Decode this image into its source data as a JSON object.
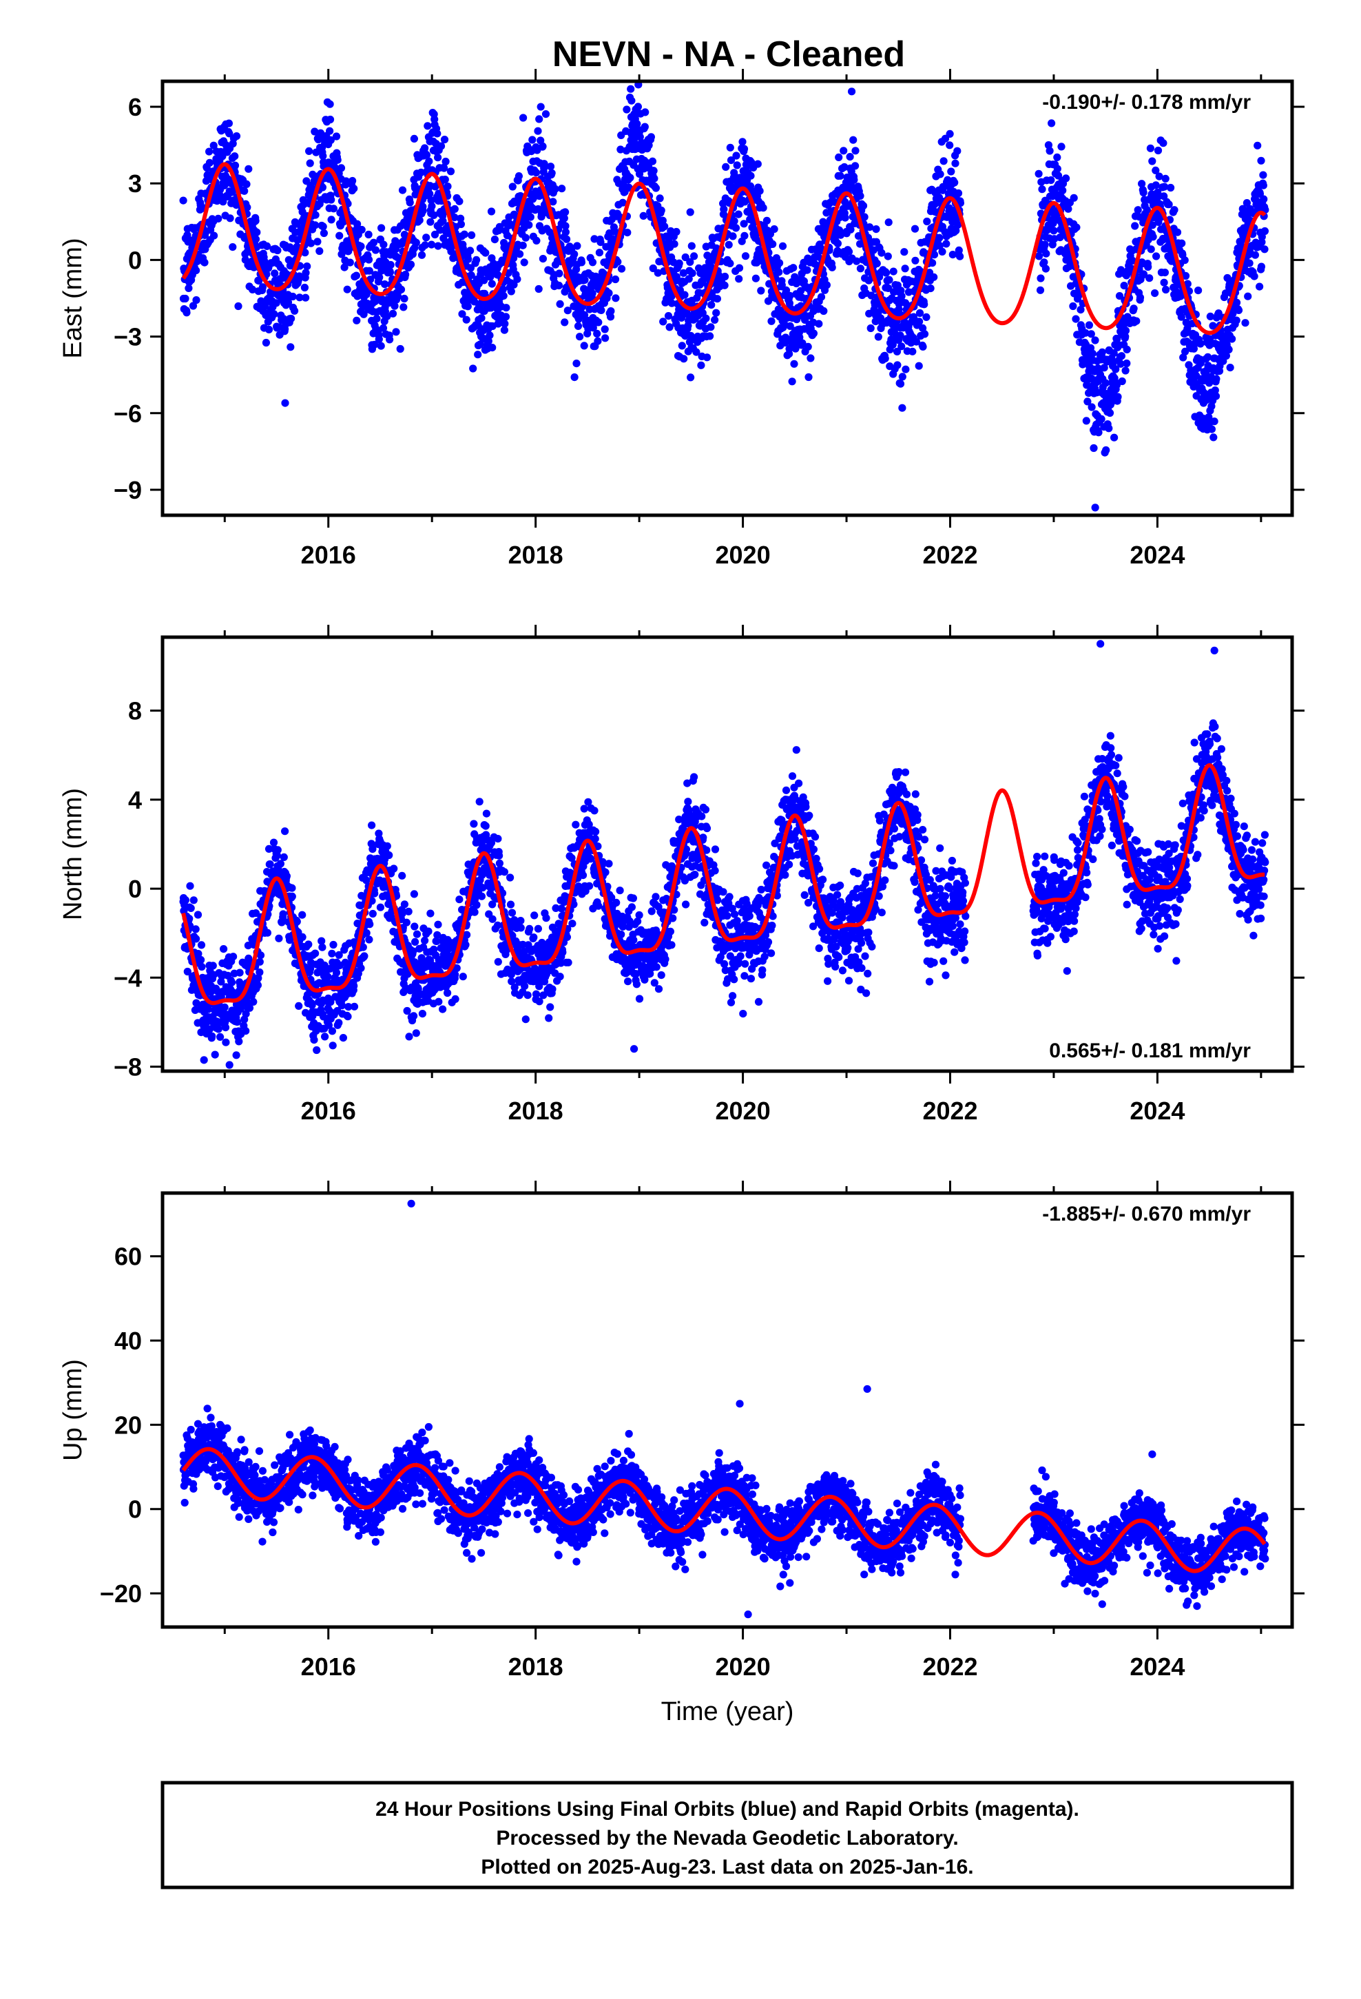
{
  "title": "NEVN  - NA - Cleaned",
  "footer": {
    "lines": [
      "24 Hour Positions Using Final Orbits (blue) and Rapid Orbits (magenta).",
      "Processed by the Nevada Geodetic Laboratory.",
      "Plotted on 2025-Aug-23. Last data on 2025-Jan-16."
    ]
  },
  "colors": {
    "points": "#0000ff",
    "model": "#ff0000",
    "frame": "#000000"
  },
  "chart_data": [
    {
      "type": "scatter",
      "panel": "east",
      "ylabel": "East (mm)",
      "xlabel": "",
      "rate_text": "-0.190+/- 0.178 mm/yr",
      "rate_position": "top-right",
      "xlim": [
        2014.4,
        2025.3
      ],
      "ylim": [
        -10,
        7
      ],
      "yticks": [
        6,
        3,
        0,
        -3,
        -6,
        -9
      ],
      "ytick_labels": [
        "6",
        "3",
        "0",
        "−3",
        "−6",
        "−9"
      ],
      "xticks": [
        2016,
        2018,
        2020,
        2022,
        2024
      ],
      "xtick_labels": [
        "2016",
        "2018",
        "2020",
        "2022",
        "2024"
      ],
      "data_start": 2014.6,
      "data_end": 2025.04,
      "gaps": [
        [
          2022.1,
          2022.85
        ]
      ],
      "model": {
        "offset": 0.1,
        "trend": -0.19,
        "ref_year": 2020,
        "annual_amp": 2.4,
        "phase_year": 0.0,
        "semiannual_amp": 0.3
      },
      "noise_sd": 1.1,
      "extra_features": [
        {
          "center": 2023.45,
          "width": 0.18,
          "amp": -3.0
        },
        {
          "center": 2024.45,
          "width": 0.18,
          "amp": -2.0
        },
        {
          "center": 2018.95,
          "width": 0.2,
          "amp": 1.5
        }
      ],
      "outliers": [
        [
          2021.05,
          6.6
        ],
        [
          2023.4,
          -9.7
        ],
        [
          2018.05,
          6.0
        ],
        [
          2022.95,
          4.5
        ]
      ]
    },
    {
      "type": "scatter",
      "panel": "north",
      "ylabel": "North (mm)",
      "xlabel": "",
      "rate_text": "0.565+/- 0.181 mm/yr",
      "rate_position": "bottom-right",
      "xlim": [
        2014.4,
        2025.3
      ],
      "ylim": [
        -8.2,
        11.3
      ],
      "yticks": [
        8,
        4,
        0,
        -4,
        -8
      ],
      "ytick_labels": [
        "8",
        "4",
        "0",
        "−4",
        "−8"
      ],
      "xticks": [
        2016,
        2018,
        2020,
        2022,
        2024
      ],
      "xtick_labels": [
        "2016",
        "2018",
        "2020",
        "2022",
        "2024"
      ],
      "data_start": 2014.6,
      "data_end": 2025.04,
      "gaps": [
        [
          2022.15,
          2022.8
        ]
      ],
      "model": {
        "offset": -0.4,
        "trend": 0.565,
        "ref_year": 2020,
        "annual_amp": 2.6,
        "phase_year": 0.5,
        "semiannual_amp": 0.8
      },
      "noise_sd": 1.0,
      "extra_features": [],
      "outliers": [
        [
          2023.45,
          11.0
        ],
        [
          2024.55,
          10.7
        ],
        [
          2014.8,
          -7.7
        ],
        [
          2018.95,
          -7.2
        ]
      ]
    },
    {
      "type": "scatter",
      "panel": "up",
      "ylabel": "Up (mm)",
      "xlabel": "Time (year)",
      "rate_text": "-1.885+/- 0.670 mm/yr",
      "rate_position": "top-right",
      "xlim": [
        2014.4,
        2025.3
      ],
      "ylim": [
        -28,
        75
      ],
      "yticks": [
        60,
        40,
        20,
        0,
        -20
      ],
      "ytick_labels": [
        "60",
        "40",
        "20",
        "0",
        "−20"
      ],
      "xticks": [
        2016,
        2018,
        2020,
        2022,
        2024
      ],
      "xtick_labels": [
        "2016",
        "2018",
        "2020",
        "2022",
        "2024"
      ],
      "data_start": 2014.6,
      "data_end": 2025.04,
      "gaps": [
        [
          2022.1,
          2022.8
        ]
      ],
      "model": {
        "offset": -1.0,
        "trend": -1.885,
        "ref_year": 2020,
        "annual_amp": 5.5,
        "phase_year": 0.85,
        "semiannual_amp": 0.0
      },
      "noise_sd": 3.5,
      "extra_features": [],
      "outliers": [
        [
          2016.8,
          72.5
        ],
        [
          2021.2,
          28.5
        ],
        [
          2019.97,
          25.0
        ],
        [
          2023.95,
          13.0
        ],
        [
          2020.05,
          -25.0
        ]
      ]
    }
  ]
}
